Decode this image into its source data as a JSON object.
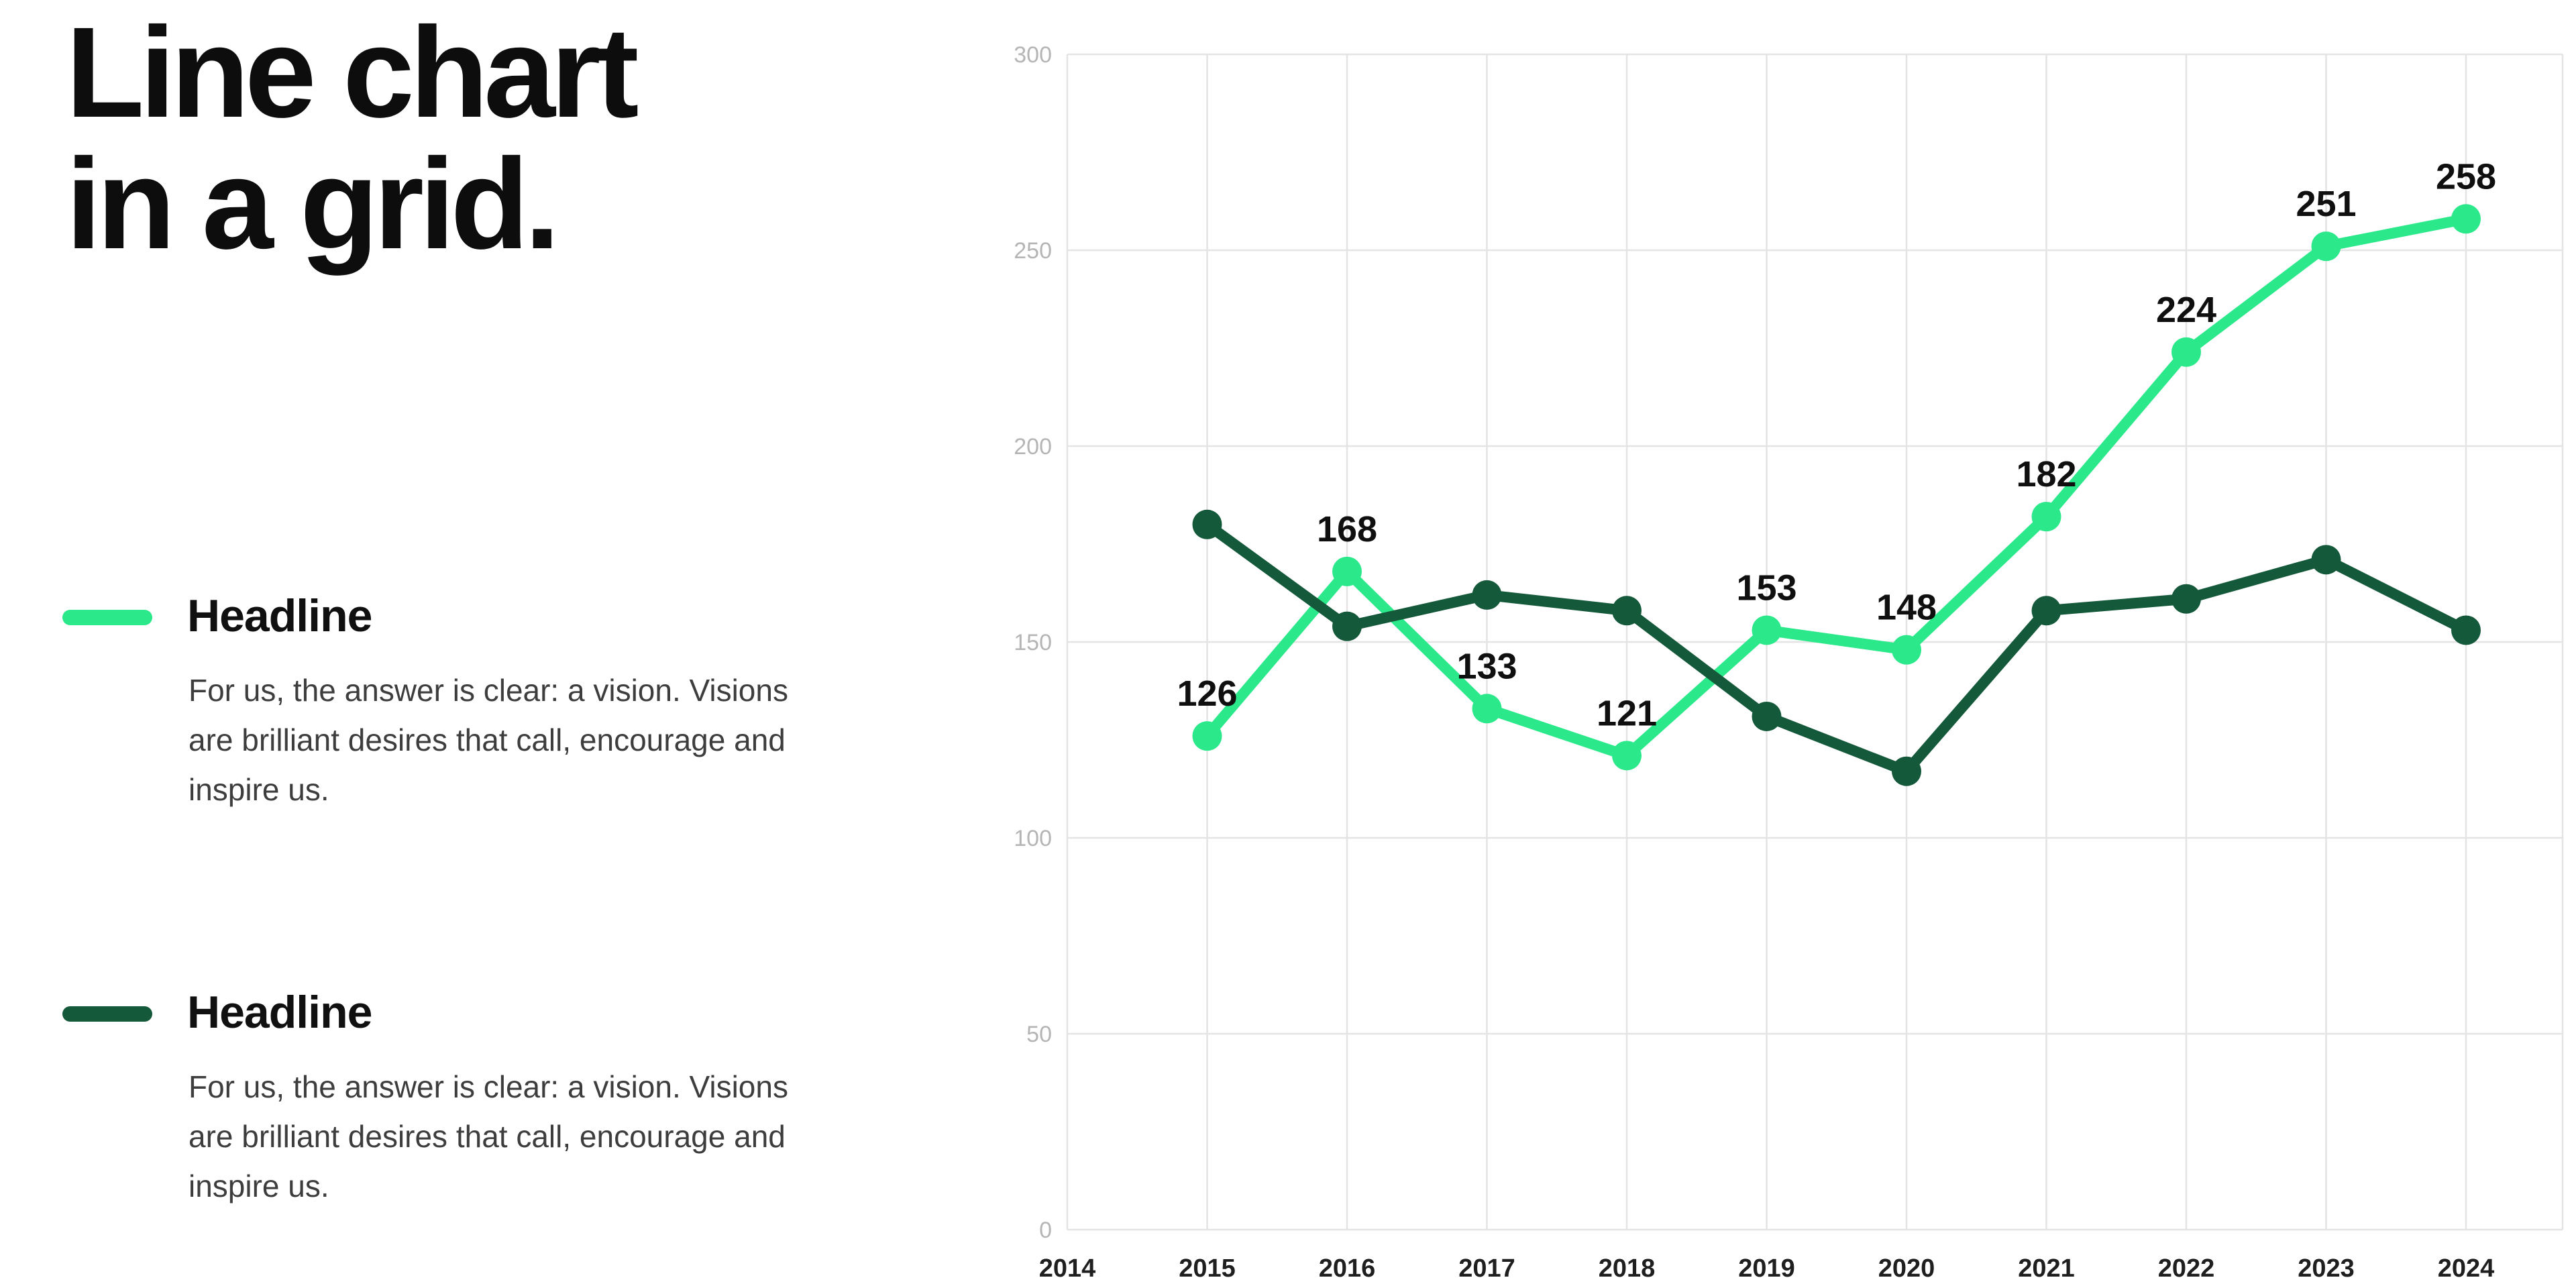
{
  "title": {
    "line1": "Line chart",
    "line2": "in a grid."
  },
  "legend": [
    {
      "headline": "Headline",
      "color": "#2BE98B",
      "body_lines": [
        "For us, the answer is clear: a vision. Visions",
        "are brilliant desires that call, encourage and",
        "inspire us."
      ]
    },
    {
      "headline": "Headline",
      "color": "#15593B",
      "body_lines": [
        "For us, the answer is clear: a vision. Visions",
        "are brilliant desires that call, encourage and",
        "inspire us."
      ]
    }
  ],
  "chart_data": {
    "type": "line",
    "title": "",
    "xlabel": "",
    "ylabel": "",
    "categories": [
      "2014",
      "2015",
      "2016",
      "2017",
      "2018",
      "2019",
      "2020",
      "2021",
      "2022",
      "2023",
      "2024"
    ],
    "ylim": [
      0,
      300
    ],
    "yticks": [
      0,
      50,
      100,
      150,
      200,
      250,
      300
    ],
    "grid": true,
    "legend_position": "left",
    "series": [
      {
        "name": "Headline",
        "color": "#2BE98B",
        "years": [
          "2015",
          "2016",
          "2017",
          "2018",
          "2019",
          "2020",
          "2021",
          "2022",
          "2023",
          "2024"
        ],
        "values": [
          126,
          168,
          133,
          121,
          153,
          148,
          182,
          224,
          251,
          258
        ],
        "show_point_labels": true
      },
      {
        "name": "Headline",
        "color": "#15593B",
        "years": [
          "2015",
          "2016",
          "2017",
          "2018",
          "2019",
          "2020",
          "2021",
          "2022",
          "2023",
          "2024"
        ],
        "values": [
          180,
          154,
          162,
          158,
          131,
          117,
          158,
          161,
          171,
          153
        ],
        "show_point_labels": false
      }
    ],
    "styles": {
      "grid_color": "#e4e4e4",
      "y_tick_color": "#b5b5b5",
      "x_tick_color": "#1f1f1f",
      "point_label_color": "#0f0f0f"
    }
  }
}
